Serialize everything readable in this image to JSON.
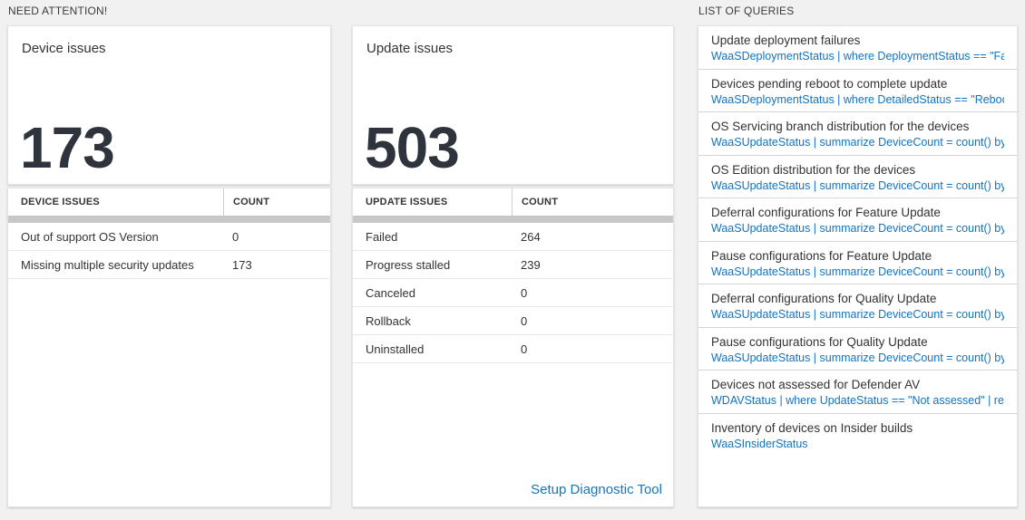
{
  "colors": {
    "page_background": "#f1f1f1",
    "card_background": "#ffffff",
    "accent_blue": "#1273c3",
    "big_number": "#2e333c",
    "gray_bar": "#c8c8c8"
  },
  "need_attention": {
    "section_title": "NEED ATTENTION!",
    "tiles": [
      {
        "title": "Device issues",
        "value": "173"
      },
      {
        "title": "Update issues",
        "value": "503"
      }
    ],
    "tables": [
      {
        "headers": [
          "DEVICE ISSUES",
          "COUNT"
        ],
        "rows": [
          [
            "Out of support OS Version",
            "0"
          ],
          [
            "Missing multiple security updates",
            "173"
          ]
        ]
      },
      {
        "headers": [
          "UPDATE ISSUES",
          "COUNT"
        ],
        "rows": [
          [
            "Failed",
            "264"
          ],
          [
            "Progress stalled",
            "239"
          ],
          [
            "Canceled",
            "0"
          ],
          [
            "Rollback",
            "0"
          ],
          [
            "Uninstalled",
            "0"
          ]
        ],
        "footer_link": "Setup Diagnostic Tool"
      }
    ]
  },
  "queries": {
    "section_title": "LIST OF QUERIES",
    "items": [
      {
        "title": "Update deployment failures",
        "query": "WaaSDeploymentStatus | where DeploymentStatus == \"Failed\" |..."
      },
      {
        "title": "Devices pending reboot to complete update",
        "query": "WaaSDeploymentStatus | where DetailedStatus == \"Reboot pend..."
      },
      {
        "title": "OS Servicing branch distribution for the devices",
        "query": "WaaSUpdateStatus | summarize DeviceCount = count() by OSSer..."
      },
      {
        "title": "OS Edition distribution for the devices",
        "query": "WaaSUpdateStatus | summarize DeviceCount = count() by OSEdit..."
      },
      {
        "title": "Deferral configurations for Feature Update",
        "query": "WaaSUpdateStatus | summarize DeviceCount = count() by Featur..."
      },
      {
        "title": "Pause configurations for Feature Update",
        "query": "WaaSUpdateStatus | summarize DeviceCount = count() by Featur..."
      },
      {
        "title": "Deferral configurations for Quality Update",
        "query": "WaaSUpdateStatus | summarize DeviceCount = count() by Qualit..."
      },
      {
        "title": "Pause configurations for Quality Update",
        "query": "WaaSUpdateStatus | summarize DeviceCount = count() by Qualit..."
      },
      {
        "title": "Devices not assessed for Defender AV",
        "query": "WDAVStatus | where UpdateStatus == \"Not assessed\" | render ta..."
      },
      {
        "title": "Inventory of devices on Insider builds",
        "query": "WaaSInsiderStatus"
      }
    ]
  }
}
